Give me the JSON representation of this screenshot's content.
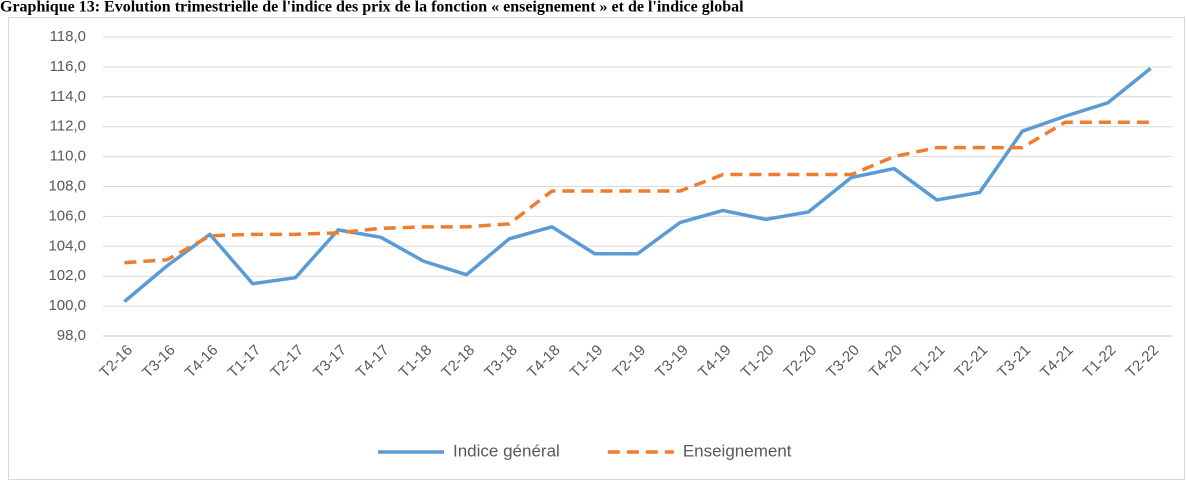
{
  "chart_data": {
    "type": "line",
    "title": "Graphique 13: Evolution trimestrielle de l'indice des prix de la fonction « enseignement » et de l'indice global",
    "categories": [
      "T2-16",
      "T3-16",
      "T4-16",
      "T1-17",
      "T2-17",
      "T3-17",
      "T4-17",
      "T1-18",
      "T2-18",
      "T3-18",
      "T4-18",
      "T1-19",
      "T2-19",
      "T3-19",
      "T4-19",
      "T1-20",
      "T2-20",
      "T3-20",
      "T4-20",
      "T1-21",
      "T2-21",
      "T3-21",
      "T4-21",
      "T1-22",
      "T2-22"
    ],
    "series": [
      {
        "name": "Indice général",
        "color": "#5b9bd5",
        "dashed": false,
        "values": [
          100.3,
          102.7,
          104.8,
          101.5,
          101.9,
          105.1,
          104.6,
          103.0,
          102.1,
          104.5,
          105.3,
          103.5,
          103.5,
          105.6,
          106.4,
          105.8,
          106.3,
          108.6,
          109.2,
          107.1,
          107.6,
          111.7,
          112.7,
          113.6,
          115.9
        ]
      },
      {
        "name": "Enseignement",
        "color": "#ed7d31",
        "dashed": true,
        "values": [
          102.9,
          103.1,
          104.7,
          104.8,
          104.8,
          104.9,
          105.2,
          105.3,
          105.3,
          105.5,
          107.7,
          107.7,
          107.7,
          107.7,
          108.8,
          108.8,
          108.8,
          108.8,
          110.0,
          110.6,
          110.6,
          110.6,
          112.3,
          112.3,
          112.3
        ]
      }
    ],
    "ylim": [
      98,
      118
    ],
    "yticks": [
      {
        "value": 98,
        "label": "98,0"
      },
      {
        "value": 100,
        "label": "100,0"
      },
      {
        "value": 102,
        "label": "102,0"
      },
      {
        "value": 104,
        "label": "104,0"
      },
      {
        "value": 106,
        "label": "106,0"
      },
      {
        "value": 108,
        "label": "108,0"
      },
      {
        "value": 110,
        "label": "110,0"
      },
      {
        "value": 112,
        "label": "112,0"
      },
      {
        "value": 114,
        "label": "114,0"
      },
      {
        "value": 116,
        "label": "116,0"
      },
      {
        "value": 118,
        "label": "118,0"
      }
    ],
    "grid": true,
    "legend": "bottom"
  }
}
